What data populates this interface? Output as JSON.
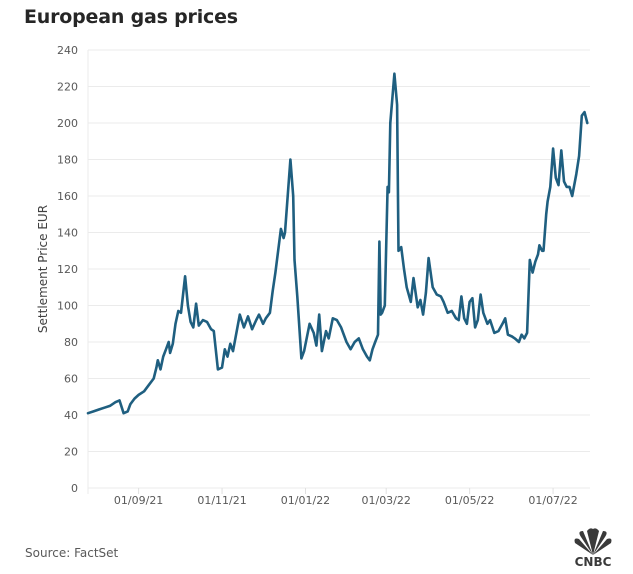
{
  "title": "European gas prices",
  "source": "Source: FactSet",
  "logo": {
    "text": "CNBC",
    "icon": "peacock-icon"
  },
  "colors": {
    "line": "#1f5f80",
    "grid": "#ebebeb",
    "axis_text": "#595959",
    "title": "#262626"
  },
  "chart_data": {
    "type": "line",
    "title": "European gas prices",
    "xlabel": "",
    "ylabel": "Settlement Price EUR",
    "ylim": [
      0,
      240
    ],
    "yticks": [
      0,
      20,
      40,
      60,
      80,
      100,
      120,
      140,
      160,
      180,
      200,
      220,
      240
    ],
    "xlim": [
      "2021-07-26",
      "2022-07-28"
    ],
    "xticks": [
      {
        "date": "2021-09-01",
        "label": "01/09/21"
      },
      {
        "date": "2021-11-01",
        "label": "01/11/21"
      },
      {
        "date": "2022-01-01",
        "label": "01/01/22"
      },
      {
        "date": "2022-03-01",
        "label": "01/03/22"
      },
      {
        "date": "2022-05-01",
        "label": "01/05/22"
      },
      {
        "date": "2022-07-01",
        "label": "01/07/22"
      }
    ],
    "grid": true,
    "legend": "none",
    "series": [
      {
        "name": "Settlement Price EUR",
        "points": [
          [
            "2021-07-26",
            41
          ],
          [
            "2021-07-30",
            42
          ],
          [
            "2021-08-03",
            43
          ],
          [
            "2021-08-07",
            44
          ],
          [
            "2021-08-11",
            45
          ],
          [
            "2021-08-15",
            47
          ],
          [
            "2021-08-18",
            48
          ],
          [
            "2021-08-21",
            41
          ],
          [
            "2021-08-24",
            42
          ],
          [
            "2021-08-26",
            46
          ],
          [
            "2021-08-29",
            49
          ],
          [
            "2021-09-01",
            51
          ],
          [
            "2021-09-05",
            53
          ],
          [
            "2021-09-08",
            56
          ],
          [
            "2021-09-12",
            60
          ],
          [
            "2021-09-14",
            66
          ],
          [
            "2021-09-15",
            70
          ],
          [
            "2021-09-17",
            65
          ],
          [
            "2021-09-19",
            72
          ],
          [
            "2021-09-21",
            76
          ],
          [
            "2021-09-23",
            80
          ],
          [
            "2021-09-24",
            74
          ],
          [
            "2021-09-26",
            79
          ],
          [
            "2021-09-28",
            90
          ],
          [
            "2021-09-30",
            97
          ],
          [
            "2021-10-02",
            96
          ],
          [
            "2021-10-05",
            116
          ],
          [
            "2021-10-07",
            100
          ],
          [
            "2021-10-09",
            91
          ],
          [
            "2021-10-11",
            88
          ],
          [
            "2021-10-13",
            101
          ],
          [
            "2021-10-15",
            89
          ],
          [
            "2021-10-18",
            92
          ],
          [
            "2021-10-21",
            91
          ],
          [
            "2021-10-24",
            87
          ],
          [
            "2021-10-26",
            86
          ],
          [
            "2021-10-29",
            65
          ],
          [
            "2021-11-01",
            66
          ],
          [
            "2021-11-03",
            76
          ],
          [
            "2021-11-05",
            72
          ],
          [
            "2021-11-07",
            79
          ],
          [
            "2021-11-09",
            75
          ],
          [
            "2021-11-14",
            95
          ],
          [
            "2021-11-17",
            88
          ],
          [
            "2021-11-20",
            94
          ],
          [
            "2021-11-23",
            87
          ],
          [
            "2021-11-26",
            92
          ],
          [
            "2021-11-28",
            95
          ],
          [
            "2021-12-01",
            90
          ],
          [
            "2021-12-03",
            93
          ],
          [
            "2021-12-06",
            96
          ],
          [
            "2021-12-08",
            108
          ],
          [
            "2021-12-10",
            118
          ],
          [
            "2021-12-14",
            142
          ],
          [
            "2021-12-16",
            137
          ],
          [
            "2021-12-17",
            140
          ],
          [
            "2021-12-21",
            180
          ],
          [
            "2021-12-23",
            160
          ],
          [
            "2021-12-24",
            125
          ],
          [
            "2021-12-26",
            105
          ],
          [
            "2021-12-29",
            71
          ],
          [
            "2021-12-31",
            75
          ],
          [
            "2022-01-04",
            90
          ],
          [
            "2022-01-07",
            85
          ],
          [
            "2022-01-09",
            78
          ],
          [
            "2022-01-11",
            95
          ],
          [
            "2022-01-13",
            75
          ],
          [
            "2022-01-16",
            86
          ],
          [
            "2022-01-18",
            82
          ],
          [
            "2022-01-21",
            93
          ],
          [
            "2022-01-24",
            92
          ],
          [
            "2022-01-27",
            88
          ],
          [
            "2022-01-31",
            80
          ],
          [
            "2022-02-03",
            76
          ],
          [
            "2022-02-06",
            80
          ],
          [
            "2022-02-09",
            82
          ],
          [
            "2022-02-12",
            76
          ],
          [
            "2022-02-15",
            72
          ],
          [
            "2022-02-17",
            70
          ],
          [
            "2022-02-19",
            76
          ],
          [
            "2022-02-21",
            80
          ],
          [
            "2022-02-23",
            84
          ],
          [
            "2022-02-24",
            135
          ],
          [
            "2022-02-25",
            95
          ],
          [
            "2022-02-26",
            96
          ],
          [
            "2022-02-28",
            100
          ],
          [
            "2022-03-02",
            165
          ],
          [
            "2022-03-03",
            162
          ],
          [
            "2022-03-04",
            200
          ],
          [
            "2022-03-07",
            227
          ],
          [
            "2022-03-09",
            210
          ],
          [
            "2022-03-10",
            130
          ],
          [
            "2022-03-12",
            132
          ],
          [
            "2022-03-14",
            120
          ],
          [
            "2022-03-16",
            110
          ],
          [
            "2022-03-19",
            102
          ],
          [
            "2022-03-21",
            115
          ],
          [
            "2022-03-24",
            99
          ],
          [
            "2022-03-26",
            103
          ],
          [
            "2022-03-28",
            95
          ],
          [
            "2022-03-30",
            107
          ],
          [
            "2022-04-01",
            126
          ],
          [
            "2022-04-04",
            110
          ],
          [
            "2022-04-07",
            106
          ],
          [
            "2022-04-10",
            105
          ],
          [
            "2022-04-12",
            102
          ],
          [
            "2022-04-15",
            96
          ],
          [
            "2022-04-18",
            97
          ],
          [
            "2022-04-21",
            93
          ],
          [
            "2022-04-23",
            92
          ],
          [
            "2022-04-25",
            105
          ],
          [
            "2022-04-27",
            93
          ],
          [
            "2022-04-29",
            90
          ],
          [
            "2022-05-01",
            102
          ],
          [
            "2022-05-03",
            104
          ],
          [
            "2022-05-05",
            88
          ],
          [
            "2022-05-07",
            92
          ],
          [
            "2022-05-09",
            106
          ],
          [
            "2022-05-11",
            96
          ],
          [
            "2022-05-14",
            90
          ],
          [
            "2022-05-16",
            92
          ],
          [
            "2022-05-19",
            85
          ],
          [
            "2022-05-22",
            86
          ],
          [
            "2022-05-25",
            90
          ],
          [
            "2022-05-27",
            93
          ],
          [
            "2022-05-29",
            84
          ],
          [
            "2022-06-01",
            83
          ],
          [
            "2022-06-03",
            82
          ],
          [
            "2022-06-06",
            80
          ],
          [
            "2022-06-08",
            84
          ],
          [
            "2022-06-10",
            82
          ],
          [
            "2022-06-12",
            85
          ],
          [
            "2022-06-14",
            125
          ],
          [
            "2022-06-16",
            118
          ],
          [
            "2022-06-18",
            124
          ],
          [
            "2022-06-20",
            128
          ],
          [
            "2022-06-21",
            133
          ],
          [
            "2022-06-23",
            130
          ],
          [
            "2022-06-24",
            130
          ],
          [
            "2022-06-26",
            150
          ],
          [
            "2022-06-27",
            157
          ],
          [
            "2022-06-29",
            165
          ],
          [
            "2022-07-01",
            186
          ],
          [
            "2022-07-03",
            170
          ],
          [
            "2022-07-05",
            166
          ],
          [
            "2022-07-07",
            185
          ],
          [
            "2022-07-09",
            168
          ],
          [
            "2022-07-11",
            165
          ],
          [
            "2022-07-13",
            165
          ],
          [
            "2022-07-15",
            160
          ],
          [
            "2022-07-18",
            172
          ],
          [
            "2022-07-20",
            182
          ],
          [
            "2022-07-22",
            204
          ],
          [
            "2022-07-24",
            206
          ],
          [
            "2022-07-26",
            200
          ]
        ]
      }
    ]
  }
}
